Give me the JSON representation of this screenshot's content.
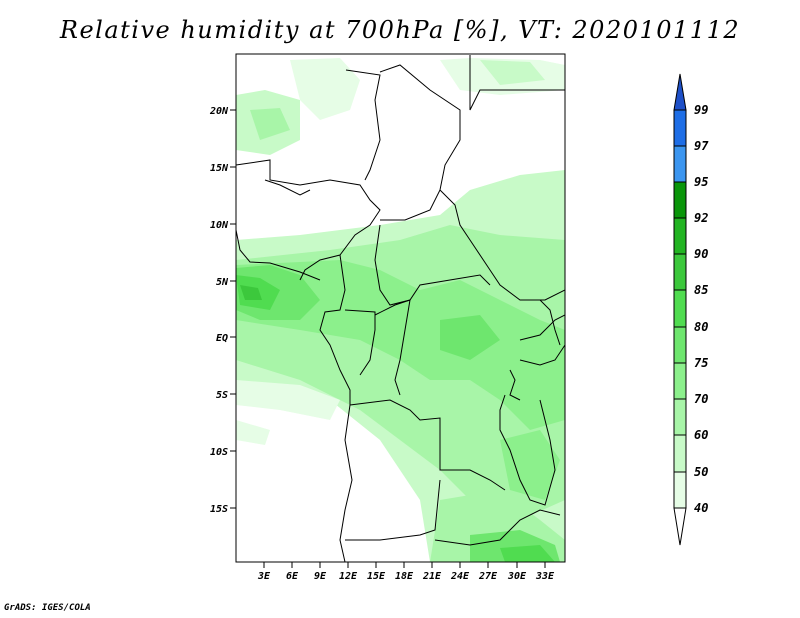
{
  "title": "Relative humidity at 700hPa [%], VT: 2020101112",
  "credit": "GrADS: IGES/COLA",
  "map": {
    "lat_ticks": [
      "20N",
      "15N",
      "10N",
      "5N",
      "EQ",
      "5S",
      "10S",
      "15S"
    ],
    "lon_ticks": [
      "3E",
      "6E",
      "9E",
      "12E",
      "15E",
      "18E",
      "21E",
      "24E",
      "27E",
      "30E",
      "33E"
    ]
  },
  "legend": {
    "labels": [
      "99",
      "97",
      "95",
      "92",
      "90",
      "85",
      "80",
      "75",
      "70",
      "60",
      "50",
      "40"
    ],
    "colors": {
      "gt99": "#1e50c8",
      "97_99": "#1e6ee6",
      "95_97": "#3c96f0",
      "92_95": "#0a960a",
      "90_92": "#22b422",
      "85_90": "#3cc83c",
      "80_85": "#50dc50",
      "75_80": "#6ee66e",
      "70_75": "#8cf08c",
      "60_70": "#a8f5a8",
      "50_60": "#c8fac8",
      "40_50": "#e6fde6",
      "lt40": "#ffffff"
    }
  }
}
